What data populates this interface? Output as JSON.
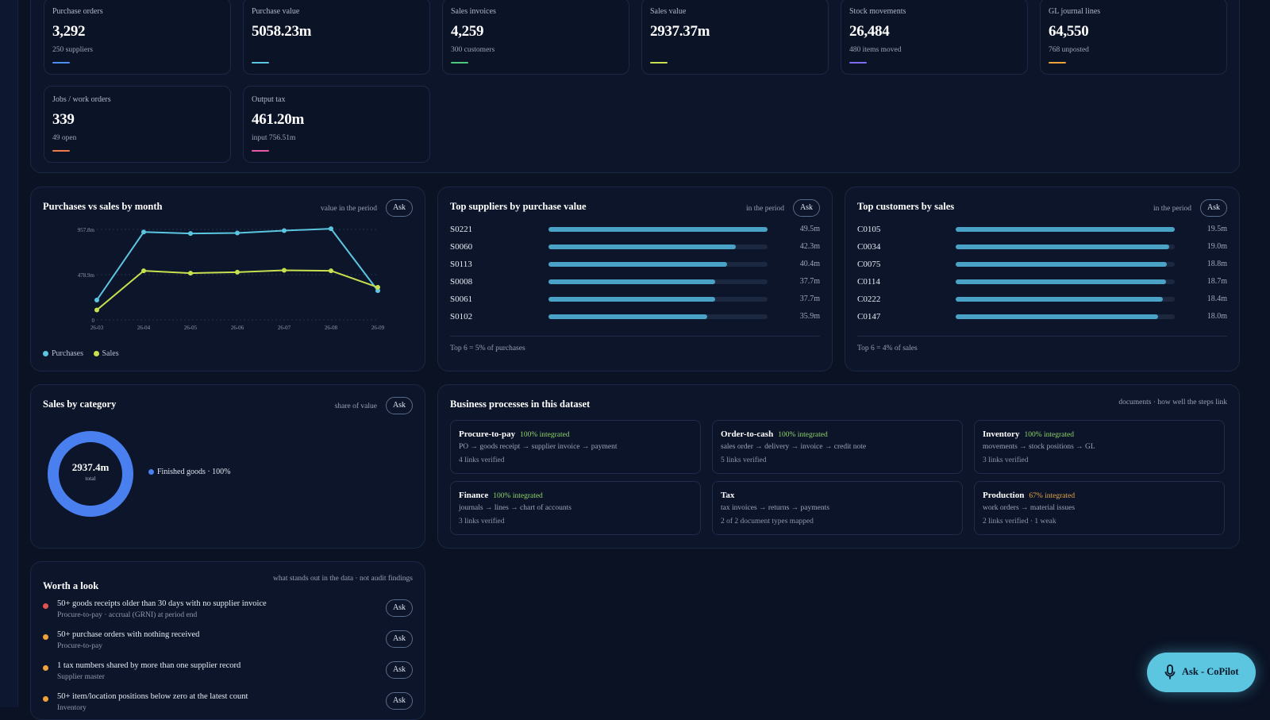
{
  "kpis": [
    {
      "label": "Purchase orders",
      "value": "3,292",
      "sub": "250 suppliers",
      "color": "#4a8ef0"
    },
    {
      "label": "Purchase value",
      "value": "5058.23m",
      "sub": "",
      "color": "#5cc6e0"
    },
    {
      "label": "Sales invoices",
      "value": "4,259",
      "sub": "300 customers",
      "color": "#4fc77a"
    },
    {
      "label": "Sales value",
      "value": "2937.37m",
      "sub": "",
      "color": "#c8e04f"
    },
    {
      "label": "Stock movements",
      "value": "26,484",
      "sub": "480 items moved",
      "color": "#7d6cf2"
    },
    {
      "label": "GL journal lines",
      "value": "64,550",
      "sub": "768 unposted",
      "color": "#f0a13a"
    },
    {
      "label": "Jobs / work orders",
      "value": "339",
      "sub": "49 open",
      "color": "#f07a4a"
    },
    {
      "label": "Output tax",
      "value": "461.20m",
      "sub": "input 756.51m",
      "color": "#e65aa8"
    }
  ],
  "purchases_sales": {
    "title": "Purchases vs sales by month",
    "note": "value in the period",
    "ask": "Ask",
    "legend": [
      {
        "name": "Purchases",
        "color": "#5cc6e0"
      },
      {
        "name": "Sales",
        "color": "#c8e04f"
      }
    ]
  },
  "chart_data": {
    "type": "line",
    "x": [
      "26-03",
      "26-04",
      "26-05",
      "26-06",
      "26-07",
      "26-08",
      "26-09"
    ],
    "y_ticks": [
      "0",
      "478.9m",
      "957.8m"
    ],
    "ylim": [
      0,
      957.8
    ],
    "grid": true,
    "legend_position": "bottom-left",
    "series": [
      {
        "name": "Purchases",
        "color": "#5cc6e0",
        "values": [
          210,
          930,
          915,
          920,
          945,
          965,
          310
        ]
      },
      {
        "name": "Sales",
        "color": "#c8e04f",
        "values": [
          105,
          520,
          495,
          505,
          525,
          520,
          345
        ]
      }
    ]
  },
  "suppliers": {
    "title": "Top suppliers by purchase value",
    "note": "in the period",
    "ask": "Ask",
    "rows": [
      {
        "label": "S0221",
        "fraction": 1.0,
        "value": "49.5m"
      },
      {
        "label": "S0060",
        "fraction": 0.855,
        "value": "42.3m"
      },
      {
        "label": "S0113",
        "fraction": 0.816,
        "value": "40.4m"
      },
      {
        "label": "S0008",
        "fraction": 0.762,
        "value": "37.7m"
      },
      {
        "label": "S0061",
        "fraction": 0.762,
        "value": "37.7m"
      },
      {
        "label": "S0102",
        "fraction": 0.725,
        "value": "35.9m"
      }
    ],
    "footer": "Top 6 = 5% of purchases"
  },
  "customers": {
    "title": "Top customers by sales",
    "note": "in the period",
    "ask": "Ask",
    "rows": [
      {
        "label": "C0105",
        "fraction": 1.0,
        "value": "19.5m"
      },
      {
        "label": "C0034",
        "fraction": 0.974,
        "value": "19.0m"
      },
      {
        "label": "C0075",
        "fraction": 0.964,
        "value": "18.8m"
      },
      {
        "label": "C0114",
        "fraction": 0.959,
        "value": "18.7m"
      },
      {
        "label": "C0222",
        "fraction": 0.944,
        "value": "18.4m"
      },
      {
        "label": "C0147",
        "fraction": 0.923,
        "value": "18.0m"
      }
    ],
    "footer": "Top 6 = 4% of sales"
  },
  "sales_category": {
    "title": "Sales by category",
    "note": "share of value",
    "ask": "Ask",
    "total": "2937.4m",
    "total_label": "total",
    "legend": "Finished goods · 100%",
    "share": 1.0,
    "color": "#4a7ff0"
  },
  "processes": {
    "title": "Business processes in this dataset",
    "note": "documents · how well the steps link",
    "items": [
      {
        "name": "Procure-to-pay",
        "badge": "100% integrated",
        "badge_color": "#8fd26a",
        "flow": "PO → goods receipt → supplier invoice → payment",
        "links": "4 links verified"
      },
      {
        "name": "Order-to-cash",
        "badge": "100% integrated",
        "badge_color": "#8fd26a",
        "flow": "sales order → delivery → invoice → credit note",
        "links": "5 links verified"
      },
      {
        "name": "Inventory",
        "badge": "100% integrated",
        "badge_color": "#8fd26a",
        "flow": "movements → stock positions → GL",
        "links": "3 links verified"
      },
      {
        "name": "Finance",
        "badge": "100% integrated",
        "badge_color": "#8fd26a",
        "flow": "journals → lines → chart of accounts",
        "links": "3 links verified"
      },
      {
        "name": "Tax",
        "badge": "",
        "badge_color": "#8fd26a",
        "flow": "tax invoices → returns → payments",
        "links": "2 of 2 document types mapped"
      },
      {
        "name": "Production",
        "badge": "67% integrated",
        "badge_color": "#e3a64a",
        "flow": "work orders → material issues",
        "links": "2 links verified · 1 weak"
      }
    ]
  },
  "worth_a_look": {
    "title": "Worth a look",
    "note": "what stands out in the data · not audit findings",
    "ask": "Ask",
    "items": [
      {
        "title": "50+ goods receipts older than 30 days with no supplier invoice",
        "sub": "Procure-to-pay · accrual (GRNI) at period end",
        "color": "#e0524f"
      },
      {
        "title": "50+ purchase orders with nothing received",
        "sub": "Procure-to-pay",
        "color": "#f0a13a"
      },
      {
        "title": "1 tax numbers shared by more than one supplier record",
        "sub": "Supplier master",
        "color": "#f0a13a"
      },
      {
        "title": "50+ item/location positions below zero at the latest count",
        "sub": "Inventory",
        "color": "#f0a13a"
      }
    ]
  },
  "copilot": {
    "label": "Ask - CoPilot",
    "icon": "microphone-icon"
  }
}
